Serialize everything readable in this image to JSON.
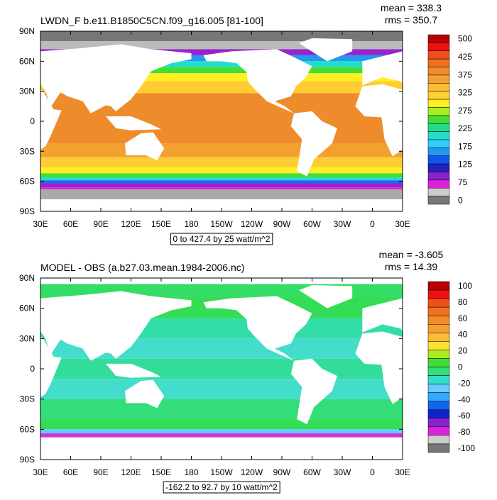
{
  "panels": [
    {
      "title": "LWDN_F b.e11.B1850C5CN.f09_g16.005 [81-100]",
      "stats": [
        "mean = 338.3",
        "rms = 350.7"
      ],
      "range_note": "0 to 427.4 by 25 watt/m^2",
      "colorbar_labels": [
        "500",
        "425",
        "375",
        "325",
        "275",
        "225",
        "175",
        "125",
        "75",
        "0"
      ]
    },
    {
      "title": "MODEL - OBS (a.b27.03.mean.1984-2006.nc)",
      "stats": [
        "mean = -3.605",
        "rms = 14.39"
      ],
      "range_note": "-162.2 to 92.7 by 10 watt/m^2",
      "colorbar_labels": [
        "100",
        "80",
        "60",
        "40",
        "20",
        "0",
        "-20",
        "-40",
        "-60",
        "-80",
        "-100"
      ]
    }
  ],
  "lat_labels": [
    "90N",
    "60N",
    "30N",
    "0",
    "30S",
    "60S",
    "90S"
  ],
  "lon_labels": [
    "30E",
    "60E",
    "90E",
    "120E",
    "150E",
    "180",
    "150W",
    "120W",
    "90W",
    "60W",
    "30W",
    "0",
    "30E"
  ]
}
